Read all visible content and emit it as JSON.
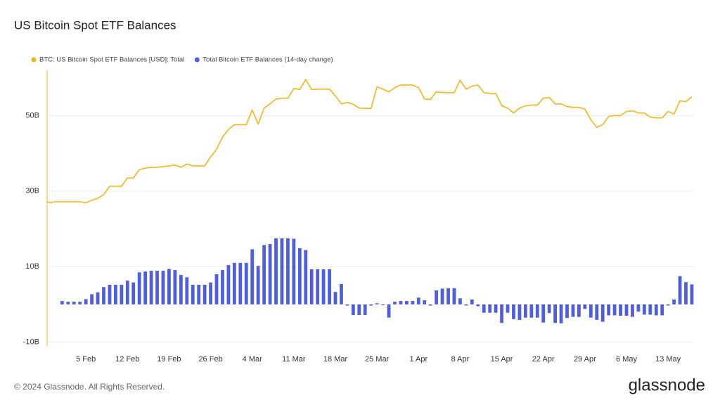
{
  "chart_data": {
    "type": "combo",
    "title": "US Bitcoin Spot ETF Balances",
    "footer": "© 2024 Glassnode. All Rights Reserved.",
    "brand": "glassnode",
    "categories": [
      null,
      null,
      null,
      null,
      null,
      null,
      null,
      "5 Feb",
      null,
      null,
      null,
      null,
      null,
      null,
      "12 Feb",
      null,
      null,
      null,
      null,
      null,
      null,
      "19 Feb",
      null,
      null,
      null,
      null,
      null,
      null,
      "26 Feb",
      null,
      null,
      null,
      null,
      null,
      null,
      "4 Mar",
      null,
      null,
      null,
      null,
      null,
      null,
      "11 Mar",
      null,
      null,
      null,
      null,
      null,
      null,
      "18 Mar",
      null,
      null,
      null,
      null,
      null,
      null,
      "25 Mar",
      null,
      null,
      null,
      null,
      null,
      null,
      "1 Apr",
      null,
      null,
      null,
      null,
      null,
      null,
      "8 Apr",
      null,
      null,
      null,
      null,
      null,
      null,
      "15 Apr",
      null,
      null,
      null,
      null,
      null,
      null,
      "22 Apr",
      null,
      null,
      null,
      null,
      null,
      null,
      "29 Apr",
      null,
      null,
      null,
      null,
      null,
      null,
      "6 May",
      null,
      null,
      null,
      null,
      null,
      null,
      "13 May",
      null,
      null,
      null,
      null
    ],
    "series": [
      {
        "name": "BTC: US Bitcoin Spot ETF Balances [USD]: Total",
        "type": "line",
        "color": "#f2b51c",
        "values": [
          27.2,
          27.0,
          27.2,
          27.2,
          27.2,
          27.2,
          27.2,
          26.9,
          27.6,
          28.1,
          29.1,
          31.3,
          31.3,
          31.3,
          33.5,
          33.5,
          35.7,
          36.1,
          36.3,
          36.3,
          36.5,
          36.7,
          36.9,
          36.3,
          37.2,
          36.7,
          36.7,
          36.7,
          39.1,
          41.1,
          44.3,
          46.3,
          47.6,
          47.6,
          47.6,
          51.5,
          47.8,
          52.0,
          53.1,
          54.4,
          54.6,
          54.6,
          57.2,
          56.9,
          59.6,
          56.9,
          57.0,
          57.0,
          57.0,
          55.2,
          53.1,
          53.5,
          53.0,
          52.0,
          51.9,
          51.9,
          57.6,
          57.0,
          56.3,
          57.4,
          58.1,
          58.1,
          58.1,
          57.4,
          54.4,
          54.3,
          56.3,
          56.1,
          56.1,
          56.1,
          59.4,
          57.0,
          57.8,
          58.1,
          56.1,
          55.9,
          55.9,
          52.6,
          52.0,
          50.7,
          52.0,
          52.6,
          52.8,
          52.8,
          54.6,
          54.8,
          53.1,
          53.1,
          52.4,
          52.2,
          52.2,
          51.7,
          48.9,
          46.9,
          47.6,
          49.8,
          50.0,
          50.0,
          51.1,
          51.3,
          50.7,
          50.7,
          49.6,
          49.4,
          49.4,
          51.1,
          50.4,
          53.9,
          53.7,
          55.0
        ]
      },
      {
        "name": "Total Bitcoin ETF Balances (14-day change)",
        "type": "bar",
        "color": "#4f5fd9",
        "values": [
          null,
          null,
          null,
          0.9,
          0.7,
          0.7,
          0.7,
          1.4,
          2.7,
          3.2,
          4.6,
          5.2,
          5.2,
          5.2,
          6.3,
          5.8,
          8.5,
          8.7,
          8.9,
          8.9,
          8.9,
          9.4,
          9.1,
          7.8,
          7.2,
          5.2,
          5.2,
          5.2,
          5.8,
          8.0,
          9.1,
          10.4,
          11.0,
          11.0,
          11.0,
          14.6,
          10.2,
          15.7,
          16.0,
          17.5,
          17.5,
          17.5,
          17.4,
          14.9,
          14.4,
          9.3,
          9.3,
          9.3,
          9.3,
          3.3,
          5.4,
          -0.3,
          -2.8,
          -2.8,
          -2.8,
          -0.3,
          0.3,
          -0.2,
          -3.5,
          0.7,
          0.9,
          0.9,
          0.9,
          1.8,
          1.1,
          -0.3,
          3.7,
          4.2,
          4.3,
          4.3,
          1.6,
          -0.3,
          1.3,
          -0.5,
          -2.2,
          -2.2,
          -2.2,
          -4.9,
          -2.2,
          -3.9,
          -4.1,
          -3.5,
          -3.5,
          -3.5,
          -4.8,
          -2.3,
          -4.9,
          -5.0,
          -3.6,
          -3.3,
          -3.3,
          -1.2,
          -3.5,
          -4.1,
          -4.6,
          -2.9,
          -2.9,
          -3.0,
          -3.0,
          -3.3,
          -1.9,
          -2.7,
          -2.7,
          -2.9,
          -2.9,
          -0.3,
          1.3,
          7.5,
          5.9,
          5.3
        ]
      }
    ],
    "ylim": [
      -11,
      62
    ],
    "yticks": [
      {
        "value": -10,
        "label": "-10B"
      },
      {
        "value": 10,
        "label": "10B"
      },
      {
        "value": 30,
        "label": "30B"
      },
      {
        "value": 50,
        "label": "50B"
      }
    ],
    "grid": true
  }
}
